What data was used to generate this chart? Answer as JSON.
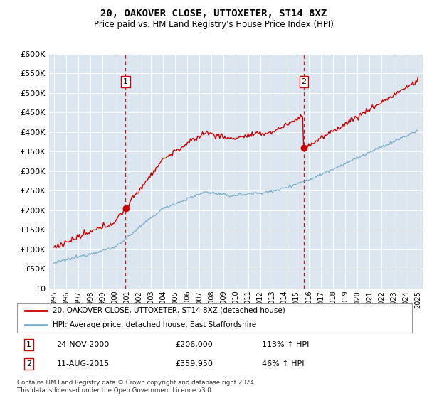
{
  "title": "20, OAKOVER CLOSE, UTTOXETER, ST14 8XZ",
  "subtitle": "Price paid vs. HM Land Registry's House Price Index (HPI)",
  "red_legend": "20, OAKOVER CLOSE, UTTOXETER, ST14 8XZ (detached house)",
  "blue_legend": "HPI: Average price, detached house, East Staffordshire",
  "annotation1_date": "24-NOV-2000",
  "annotation1_price": "£206,000",
  "annotation1_hpi": "113% ↑ HPI",
  "annotation2_date": "11-AUG-2015",
  "annotation2_price": "£359,950",
  "annotation2_hpi": "46% ↑ HPI",
  "footnote_line1": "Contains HM Land Registry data © Crown copyright and database right 2024.",
  "footnote_line2": "This data is licensed under the Open Government Licence v3.0.",
  "ylim": [
    0,
    600000
  ],
  "yticks": [
    0,
    50000,
    100000,
    150000,
    200000,
    250000,
    300000,
    350000,
    400000,
    450000,
    500000,
    550000,
    600000
  ],
  "plot_bg": "#dce6f1",
  "red_color": "#cc0000",
  "blue_color": "#7aaecc",
  "vline_color": "#cc0000",
  "sale1_year": 2000.9,
  "sale1_price": 206000,
  "sale2_year": 2015.6,
  "sale2_price": 359950,
  "xstart": 1995,
  "xend": 2025
}
